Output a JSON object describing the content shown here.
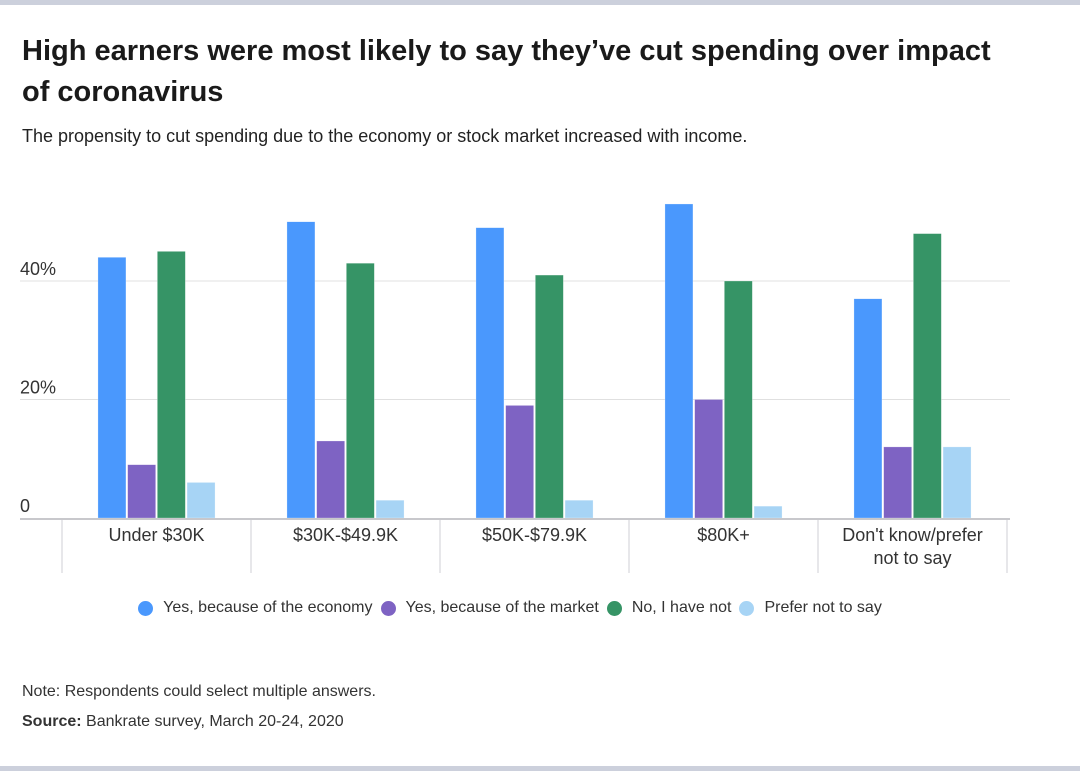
{
  "title": "High earners were most likely to say they’ve cut spending over impact of coronavirus",
  "subtitle": "The propensity to cut spending due to the economy or stock market increased with income.",
  "note": "Note: Respondents could select multiple answers.",
  "source_label": "Source:",
  "source_text": " Bankrate survey, March 20-24, 2020",
  "chart_data": {
    "type": "bar",
    "title": "High earners were most likely to say they’ve cut spending over impact of coronavirus",
    "xlabel": "",
    "ylabel": "",
    "ylim": [
      0,
      55
    ],
    "yticks": [
      0,
      20,
      40
    ],
    "ytick_labels": [
      "0",
      "20%",
      "40%"
    ],
    "grid": true,
    "legend_position": "bottom",
    "categories": [
      "Under $30K",
      "$30K-$49.9K",
      "$50K-$79.9K",
      "$80K+",
      "Don't know/prefer not to say"
    ],
    "category_lines": [
      [
        "Under $30K"
      ],
      [
        "$30K-$49.9K"
      ],
      [
        "$50K-$79.9K"
      ],
      [
        "$80K+"
      ],
      [
        "Don't know/prefer",
        "not to say"
      ]
    ],
    "series": [
      {
        "name": "Yes, because of the economy",
        "color": "#4a98fd",
        "values": [
          44,
          50,
          49,
          53,
          37
        ]
      },
      {
        "name": "Yes, because of the market",
        "color": "#7e63c3",
        "values": [
          9,
          13,
          19,
          20,
          12
        ]
      },
      {
        "name": "No, I have not",
        "color": "#369466",
        "values": [
          45,
          43,
          41,
          40,
          48
        ]
      },
      {
        "name": "Prefer not to say",
        "color": "#a7d4f5",
        "values": [
          6,
          3,
          3,
          2,
          12
        ]
      }
    ]
  }
}
